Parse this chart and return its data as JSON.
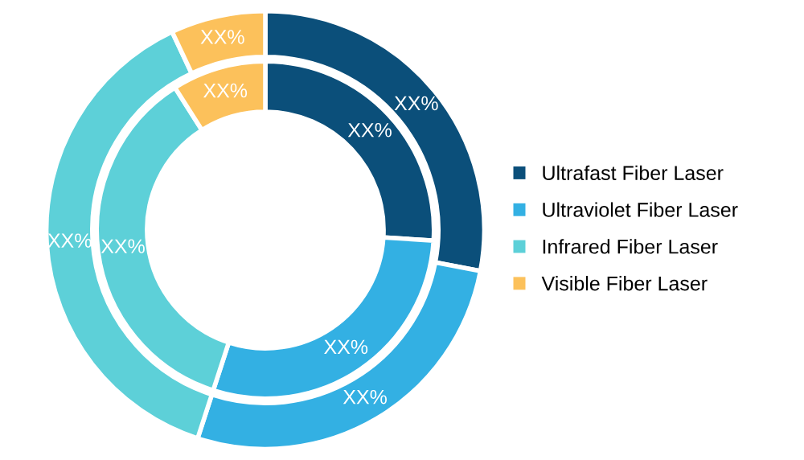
{
  "chart_data": {
    "type": "donut",
    "categories": [
      "Ultrafast Fiber Laser",
      "Ultraviolet Fiber Laser",
      "Infrared Fiber Laser",
      "Visible Fiber Laser"
    ],
    "colors": [
      "#0b4f7a",
      "#33b0e3",
      "#5dd0d8",
      "#fcc15b"
    ],
    "series": [
      {
        "values": [
          28,
          27,
          38,
          7
        ],
        "value_labels": [
          "XX%",
          "XX%",
          "XX%",
          "XX%"
        ]
      },
      {
        "values": [
          26,
          29,
          36,
          9
        ],
        "value_labels": [
          "XX%",
          "XX%",
          "XX%",
          "XX%"
        ]
      }
    ],
    "legend": "right"
  }
}
